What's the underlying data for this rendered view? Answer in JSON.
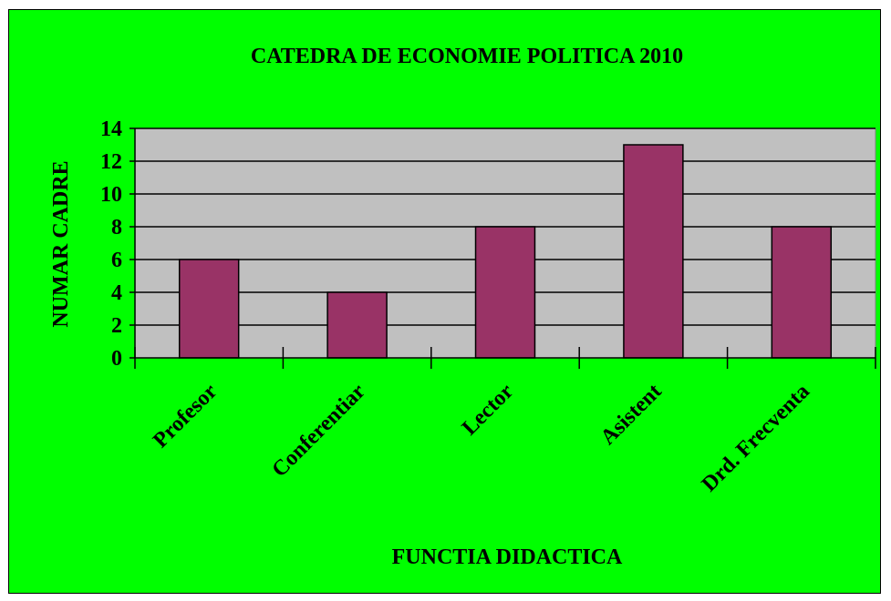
{
  "chart_data": {
    "type": "bar",
    "title": "CATEDRA DE ECONOMIE POLITICA 2010",
    "xlabel": "FUNCTIA DIDACTICA",
    "ylabel": "NUMAR CADRE",
    "categories": [
      "Profesor",
      "Conferentiar",
      "Lector",
      "Asistent",
      "Drd. Frecventa"
    ],
    "values": [
      6,
      4,
      8,
      13,
      8
    ],
    "ylim": [
      0,
      14
    ],
    "yticks": [
      0,
      2,
      4,
      6,
      8,
      10,
      12,
      14
    ],
    "grid": true,
    "legend": "none",
    "colors": {
      "background": "#00ff00",
      "plot_area": "#c0c0c0",
      "bar": "#993366",
      "axis": "#000000"
    }
  }
}
